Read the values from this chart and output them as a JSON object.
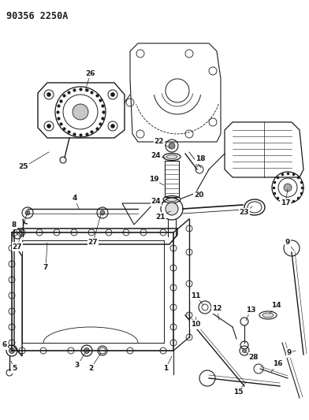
{
  "title": "90356 2250A",
  "bg_color": "#ffffff",
  "line_color": "#1a1a1a",
  "title_fontsize": 8.5,
  "label_fontsize": 6.5,
  "figsize": [
    3.92,
    5.33
  ],
  "dpi": 100
}
